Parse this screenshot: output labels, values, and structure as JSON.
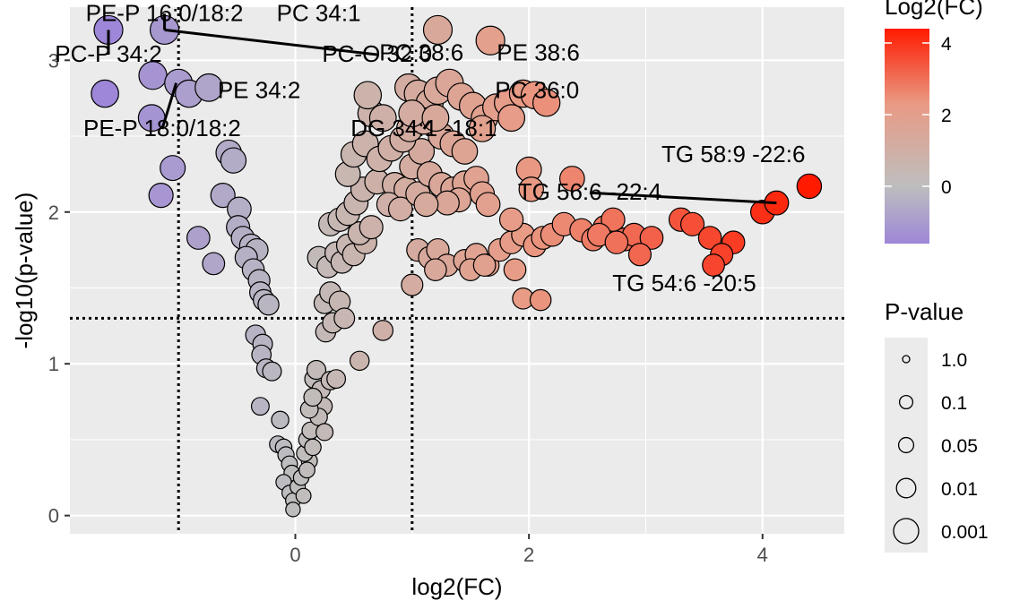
{
  "chart_data": {
    "type": "scatter",
    "title": "",
    "xlabel": "log2(FC)",
    "ylabel": "-log10(p-value)",
    "xlim": [
      -1.93,
      4.7
    ],
    "ylim": [
      -0.12,
      3.35
    ],
    "x_ticks": [
      0,
      2,
      4
    ],
    "y_ticks": [
      0,
      1,
      2,
      3
    ],
    "grid": true,
    "thresholds": {
      "vertical": [
        -1,
        1
      ],
      "horizontal": [
        1.3
      ]
    },
    "color_legend": {
      "title": "Log2(FC)",
      "ticks": [
        0,
        2,
        4
      ],
      "min": -1.6,
      "max": 4.4,
      "colors": [
        "#9e87d8",
        "#bebebe",
        "#ff1a00"
      ]
    },
    "size_legend": {
      "title": "P-value",
      "entries": [
        {
          "label": "1.0",
          "p": 1.0
        },
        {
          "label": "0.1",
          "p": 0.1
        },
        {
          "label": "0.05",
          "p": 0.05
        },
        {
          "label": "0.01",
          "p": 0.01
        },
        {
          "label": "0.001",
          "p": 0.001
        }
      ]
    },
    "annotations": [
      {
        "text": "PE-P 16:0/18:2",
        "x": -1.12,
        "y": 3.26,
        "point": [
          -1.12,
          3.2
        ]
      },
      {
        "text": "PC 34:1",
        "x": 0.2,
        "y": 3.26
      },
      {
        "text": "PC-P 34:2",
        "x": -1.6,
        "y": 2.99,
        "point": [
          -1.6,
          3.2
        ]
      },
      {
        "text": "PC-O 32:0",
        "x": 0.7,
        "y": 2.99,
        "point": [
          -1.12,
          3.2
        ]
      },
      {
        "text": "PC 38:6",
        "x": 1.08,
        "y": 3.0
      },
      {
        "text": "PE 38:6",
        "x": 2.08,
        "y": 3.0
      },
      {
        "text": "PE 34:2",
        "x": -0.31,
        "y": 2.75
      },
      {
        "text": "PC 36:0",
        "x": 2.07,
        "y": 2.75
      },
      {
        "text": "PE-P 18:0/18:2",
        "x": -1.14,
        "y": 2.5,
        "point": [
          -1.02,
          2.85
        ]
      },
      {
        "text": "DG 34:1 -18:1",
        "x": 1.1,
        "y": 2.5,
        "point": [
          1.15,
          2.6
        ]
      },
      {
        "text": "TG 58:9 -22:6",
        "x": 3.75,
        "y": 2.33
      },
      {
        "text": "TG 56:6 -22:4",
        "x": 2.52,
        "y": 2.08,
        "point": [
          4.12,
          2.06
        ]
      },
      {
        "text": "TG 54:6 -20:5",
        "x": 3.33,
        "y": 1.48
      }
    ],
    "points": [
      [
        -1.6,
        3.2
      ],
      [
        -1.12,
        3.2
      ],
      [
        -1.63,
        2.78
      ],
      [
        -1.22,
        2.9
      ],
      [
        -1.23,
        2.62
      ],
      [
        -1.0,
        2.85
      ],
      [
        -0.91,
        2.78
      ],
      [
        -0.74,
        2.82
      ],
      [
        -1.05,
        2.29
      ],
      [
        -1.15,
        2.11
      ],
      [
        -0.57,
        2.39
      ],
      [
        -0.53,
        2.34
      ],
      [
        -0.62,
        2.11
      ],
      [
        -0.48,
        2.02
      ],
      [
        -0.49,
        1.9
      ],
      [
        -0.45,
        1.83
      ],
      [
        -0.38,
        1.78
      ],
      [
        -0.33,
        1.75
      ],
      [
        -0.83,
        1.83
      ],
      [
        -0.7,
        1.66
      ],
      [
        -0.42,
        1.7
      ],
      [
        -0.36,
        1.62
      ],
      [
        -0.31,
        1.55
      ],
      [
        -0.3,
        1.47
      ],
      [
        -0.27,
        1.42
      ],
      [
        -0.23,
        1.39
      ],
      [
        -0.34,
        1.19
      ],
      [
        -0.28,
        1.13
      ],
      [
        -0.29,
        1.06
      ],
      [
        -0.25,
        0.97
      ],
      [
        -0.2,
        0.95
      ],
      [
        -0.3,
        0.72
      ],
      [
        -0.13,
        0.63
      ],
      [
        -0.15,
        0.47
      ],
      [
        -0.1,
        0.45
      ],
      [
        -0.08,
        0.4
      ],
      [
        -0.05,
        0.34
      ],
      [
        -0.03,
        0.28
      ],
      [
        -0.1,
        0.22
      ],
      [
        -0.05,
        0.15
      ],
      [
        -0.02,
        0.1
      ],
      [
        0.02,
        0.19
      ],
      [
        0.05,
        0.25
      ],
      [
        0.07,
        0.13
      ],
      [
        0.12,
        0.36
      ],
      [
        0.08,
        0.41
      ],
      [
        0.1,
        0.5
      ],
      [
        0.13,
        0.56
      ],
      [
        0.15,
        0.45
      ],
      [
        -0.02,
        0.04
      ],
      [
        0.16,
        0.9
      ],
      [
        0.18,
        0.96
      ],
      [
        0.22,
        0.83
      ],
      [
        0.19,
        0.7
      ],
      [
        0.24,
        0.72
      ],
      [
        0.2,
        0.65
      ],
      [
        0.3,
        0.89
      ],
      [
        0.35,
        0.9
      ],
      [
        0.26,
        1.21
      ],
      [
        0.32,
        1.27
      ],
      [
        0.25,
        1.4
      ],
      [
        0.3,
        1.47
      ],
      [
        0.38,
        1.41
      ],
      [
        0.42,
        1.3
      ],
      [
        0.55,
        1.02
      ],
      [
        0.75,
        1.22
      ],
      [
        0.2,
        1.7
      ],
      [
        0.28,
        1.64
      ],
      [
        0.35,
        1.73
      ],
      [
        0.4,
        1.67
      ],
      [
        0.45,
        1.78
      ],
      [
        0.5,
        1.72
      ],
      [
        0.6,
        1.8
      ],
      [
        0.55,
        1.86
      ],
      [
        0.3,
        1.92
      ],
      [
        0.38,
        1.95
      ],
      [
        0.45,
        1.99
      ],
      [
        0.52,
        2.06
      ],
      [
        0.65,
        1.9
      ],
      [
        0.58,
        2.15
      ],
      [
        0.7,
        2.2
      ],
      [
        0.85,
        2.18
      ],
      [
        0.95,
        2.15
      ],
      [
        0.8,
        2.05
      ],
      [
        0.9,
        2.02
      ],
      [
        1.0,
        2.3
      ],
      [
        1.08,
        2.4
      ],
      [
        0.45,
        2.25
      ],
      [
        0.5,
        2.38
      ],
      [
        0.6,
        2.45
      ],
      [
        0.72,
        2.35
      ],
      [
        0.82,
        2.42
      ],
      [
        0.92,
        2.48
      ],
      [
        0.98,
        2.55
      ],
      [
        0.65,
        2.65
      ],
      [
        0.75,
        2.62
      ],
      [
        0.62,
        2.77
      ],
      [
        0.97,
        2.82
      ],
      [
        1.05,
        2.78
      ],
      [
        1.15,
        2.72
      ],
      [
        1.22,
        2.8
      ],
      [
        1.32,
        2.85
      ],
      [
        1.42,
        2.76
      ],
      [
        1.52,
        2.7
      ],
      [
        1.62,
        2.62
      ],
      [
        1.72,
        2.69
      ],
      [
        1.82,
        2.72
      ],
      [
        1.95,
        2.78
      ],
      [
        2.05,
        2.77
      ],
      [
        2.15,
        2.72
      ],
      [
        1.85,
        2.62
      ],
      [
        1.25,
        2.5
      ],
      [
        1.35,
        2.45
      ],
      [
        1.45,
        2.4
      ],
      [
        1.6,
        2.55
      ],
      [
        1.1,
        2.6
      ],
      [
        1.0,
        2.65
      ],
      [
        1.2,
        2.62
      ],
      [
        1.22,
        3.2
      ],
      [
        1.67,
        3.13
      ],
      [
        1.05,
        2.12
      ],
      [
        1.15,
        2.25
      ],
      [
        1.25,
        2.18
      ],
      [
        1.35,
        2.15
      ],
      [
        1.45,
        2.19
      ],
      [
        1.55,
        2.22
      ],
      [
        1.6,
        2.12
      ],
      [
        1.65,
        2.05
      ],
      [
        1.4,
        2.08
      ],
      [
        1.3,
        2.06
      ],
      [
        1.12,
        2.05
      ],
      [
        1.05,
        1.75
      ],
      [
        1.15,
        1.7
      ],
      [
        1.22,
        1.75
      ],
      [
        1.3,
        1.65
      ],
      [
        1.45,
        1.68
      ],
      [
        1.55,
        1.72
      ],
      [
        1.65,
        1.65
      ],
      [
        1.75,
        1.75
      ],
      [
        1.85,
        1.8
      ],
      [
        1.95,
        1.85
      ],
      [
        2.05,
        1.78
      ],
      [
        2.12,
        1.83
      ],
      [
        1.85,
        1.95
      ],
      [
        2.0,
        2.28
      ],
      [
        2.02,
        2.15
      ],
      [
        2.37,
        2.22
      ],
      [
        2.2,
        1.85
      ],
      [
        2.3,
        1.92
      ],
      [
        2.45,
        1.88
      ],
      [
        2.55,
        1.82
      ],
      [
        2.65,
        1.9
      ],
      [
        2.72,
        1.95
      ],
      [
        2.82,
        1.82
      ],
      [
        2.9,
        1.85
      ],
      [
        3.05,
        1.83
      ],
      [
        2.6,
        1.85
      ],
      [
        2.75,
        1.8
      ],
      [
        2.95,
        1.72
      ],
      [
        3.3,
        1.95
      ],
      [
        3.4,
        1.92
      ],
      [
        3.55,
        1.83
      ],
      [
        3.75,
        1.8
      ],
      [
        3.65,
        1.72
      ],
      [
        3.58,
        1.65
      ],
      [
        4.0,
        2.0
      ],
      [
        4.12,
        2.06
      ],
      [
        4.4,
        2.17
      ],
      [
        1.0,
        1.52
      ],
      [
        1.2,
        1.62
      ],
      [
        1.5,
        1.62
      ],
      [
        1.62,
        1.65
      ],
      [
        1.88,
        1.62
      ],
      [
        1.95,
        1.43
      ],
      [
        2.1,
        1.42
      ],
      [
        0.12,
        0.7
      ],
      [
        0.15,
        0.78
      ],
      [
        0.25,
        0.55
      ],
      [
        0.1,
        0.3
      ]
    ]
  }
}
